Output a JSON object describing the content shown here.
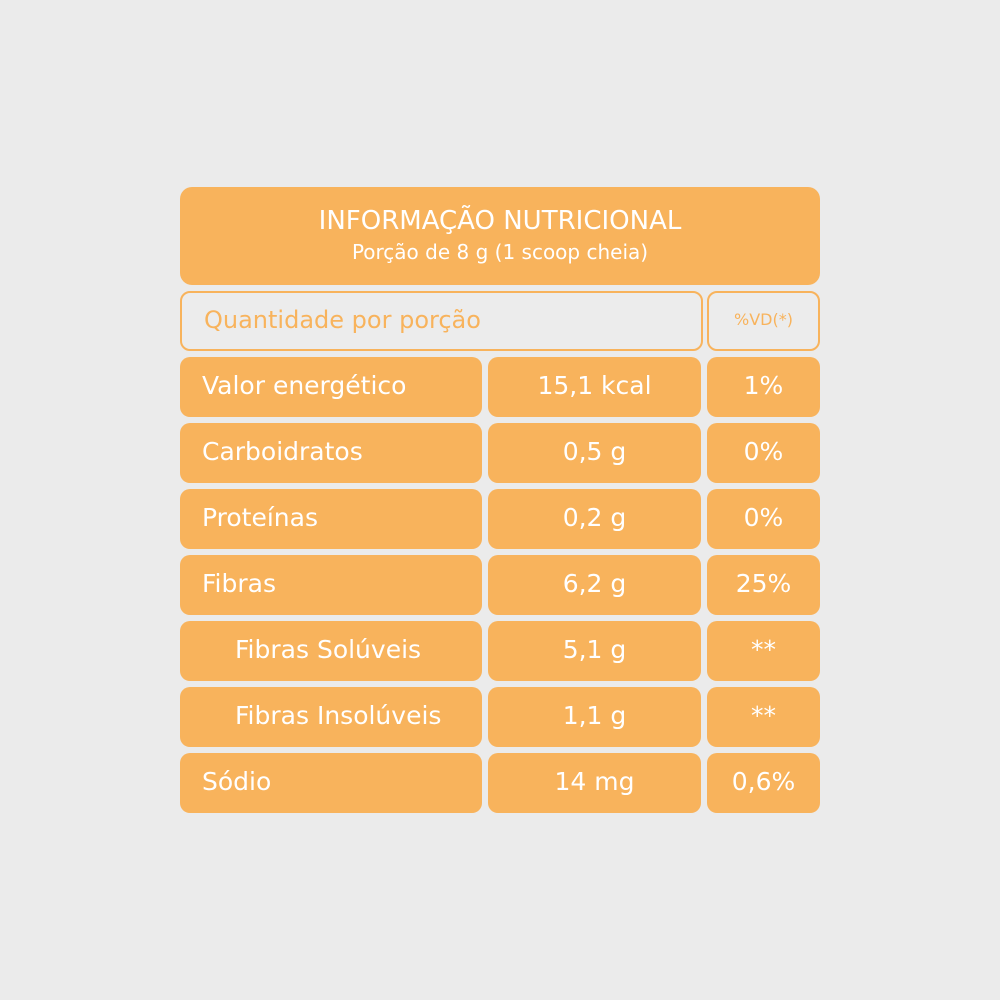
{
  "header": {
    "title": "INFORMAÇÃO NUTRICIONAL",
    "subtitle": "Porção de 8 g (1 scoop cheia)"
  },
  "columns": {
    "quantity_label": "Quantidade por porção",
    "vd_label": "%VD(*)"
  },
  "rows": [
    {
      "label": "Valor energético",
      "amount": "15,1 kcal",
      "vd": "1%"
    },
    {
      "label": "Carboidratos",
      "amount": "0,5 g",
      "vd": "0%"
    },
    {
      "label": "Proteínas",
      "amount": "0,2 g",
      "vd": "0%"
    },
    {
      "label": "Fibras",
      "amount": "6,2 g",
      "vd": "25%"
    },
    {
      "label": "Fibras Solúveis",
      "amount": "5,1 g",
      "vd": "**"
    },
    {
      "label": "Fibras Insolúveis",
      "amount": "1,1 g",
      "vd": "**"
    },
    {
      "label": "Sódio",
      "amount": "14 mg",
      "vd": "0,6%"
    }
  ],
  "colors": {
    "accent": "#f8b35c",
    "background": "#ebebeb",
    "text_on_accent": "#ffffff"
  }
}
